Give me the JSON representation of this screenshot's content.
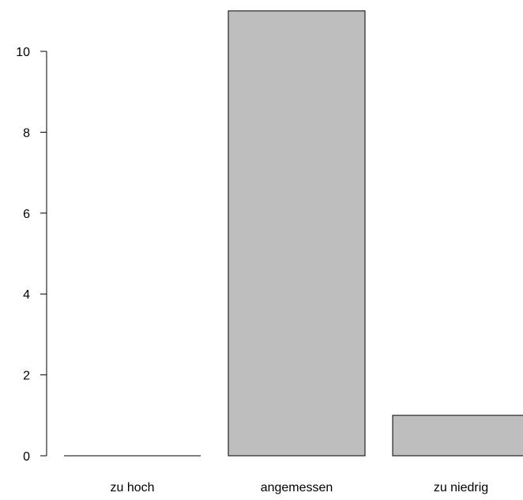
{
  "chart_data": {
    "type": "bar",
    "categories": [
      "zu hoch",
      "angemessen",
      "zu niedrig"
    ],
    "values": [
      0,
      11,
      1
    ],
    "title": "",
    "xlabel": "",
    "ylabel": "",
    "ylim": [
      0,
      11
    ],
    "yticks": [
      0,
      2,
      4,
      6,
      8,
      10
    ],
    "ytick_labels": [
      "0",
      "2",
      "4",
      "6",
      "8",
      "10"
    ],
    "grid": false,
    "legend": "none",
    "bar_fill": "#bebebe",
    "bar_stroke": "#000000"
  }
}
